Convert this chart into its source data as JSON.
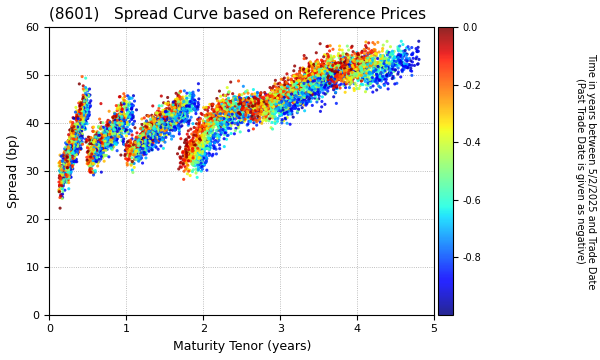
{
  "title": "(8601)   Spread Curve based on Reference Prices",
  "xlabel": "Maturity Tenor (years)",
  "ylabel": "Spread (bp)",
  "colorbar_label": "Time in years between 5/2/2025 and Trade Date\n(Past Trade Date is given as negative)",
  "xlim": [
    0,
    5
  ],
  "ylim": [
    0,
    60
  ],
  "xticks": [
    0,
    1,
    2,
    3,
    4,
    5
  ],
  "yticks": [
    0,
    10,
    20,
    30,
    40,
    50,
    60
  ],
  "cmap": "jet",
  "color_vmin": -1.0,
  "color_vmax": 0.0,
  "colorbar_ticks": [
    0.0,
    -0.2,
    -0.4,
    -0.6,
    -0.8
  ],
  "marker_size": 5,
  "background_color": "#ffffff",
  "grid_color": "#aaaaaa",
  "title_fontsize": 11,
  "axis_fontsize": 9,
  "colorbar_fontsize": 7
}
